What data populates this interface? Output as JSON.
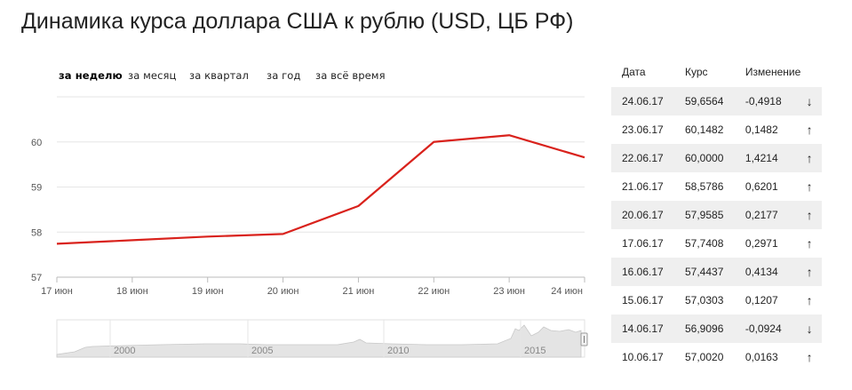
{
  "page": {
    "title": "Динамика курса доллара США к рублю (USD, ЦБ РФ)"
  },
  "range_tabs": [
    {
      "label": "за неделю",
      "active": true
    },
    {
      "label": "за месяц",
      "active": false
    },
    {
      "label": "за квартал",
      "active": false
    },
    {
      "label": "за год",
      "active": false
    },
    {
      "label": "за всё время",
      "active": false
    }
  ],
  "chart_data": {
    "type": "line",
    "x": [
      "17 июн",
      "18 июн",
      "19 июн",
      "20 июн",
      "21 июн",
      "22 июн",
      "23 июн",
      "24 июн"
    ],
    "series": [
      {
        "values": [
          57.7408,
          57.82,
          57.9,
          57.9585,
          58.5786,
          60.0,
          60.1482,
          59.6564
        ]
      }
    ],
    "y_ticks": [
      57,
      58,
      59,
      60
    ],
    "ylim": [
      57,
      61
    ],
    "grid": true,
    "line_color": "#d9221c",
    "navigator": {
      "ticks": [
        "2000",
        "2005",
        "2010",
        "2015"
      ],
      "area_color": "#e4e4e4"
    }
  },
  "table": {
    "headers": {
      "date": "Дата",
      "rate": "Курс",
      "change": "Изменение"
    },
    "rows": [
      {
        "date": "24.06.17",
        "rate": "59,6564",
        "change": "-0,4918",
        "direction": "down",
        "arrow": "↓"
      },
      {
        "date": "23.06.17",
        "rate": "60,1482",
        "change": "0,1482",
        "direction": "up",
        "arrow": "↑"
      },
      {
        "date": "22.06.17",
        "rate": "60,0000",
        "change": "1,4214",
        "direction": "up",
        "arrow": "↑"
      },
      {
        "date": "21.06.17",
        "rate": "58,5786",
        "change": "0,6201",
        "direction": "up",
        "arrow": "↑"
      },
      {
        "date": "20.06.17",
        "rate": "57,9585",
        "change": "0,2177",
        "direction": "up",
        "arrow": "↑"
      },
      {
        "date": "17.06.17",
        "rate": "57,7408",
        "change": "0,2971",
        "direction": "up",
        "arrow": "↑"
      },
      {
        "date": "16.06.17",
        "rate": "57,4437",
        "change": "0,4134",
        "direction": "up",
        "arrow": "↑"
      },
      {
        "date": "15.06.17",
        "rate": "57,0303",
        "change": "0,1207",
        "direction": "up",
        "arrow": "↑"
      },
      {
        "date": "14.06.17",
        "rate": "56,9096",
        "change": "-0,0924",
        "direction": "down",
        "arrow": "↓"
      },
      {
        "date": "10.06.17",
        "rate": "57,0020",
        "change": "0,0163",
        "direction": "up",
        "arrow": "↑"
      }
    ]
  }
}
